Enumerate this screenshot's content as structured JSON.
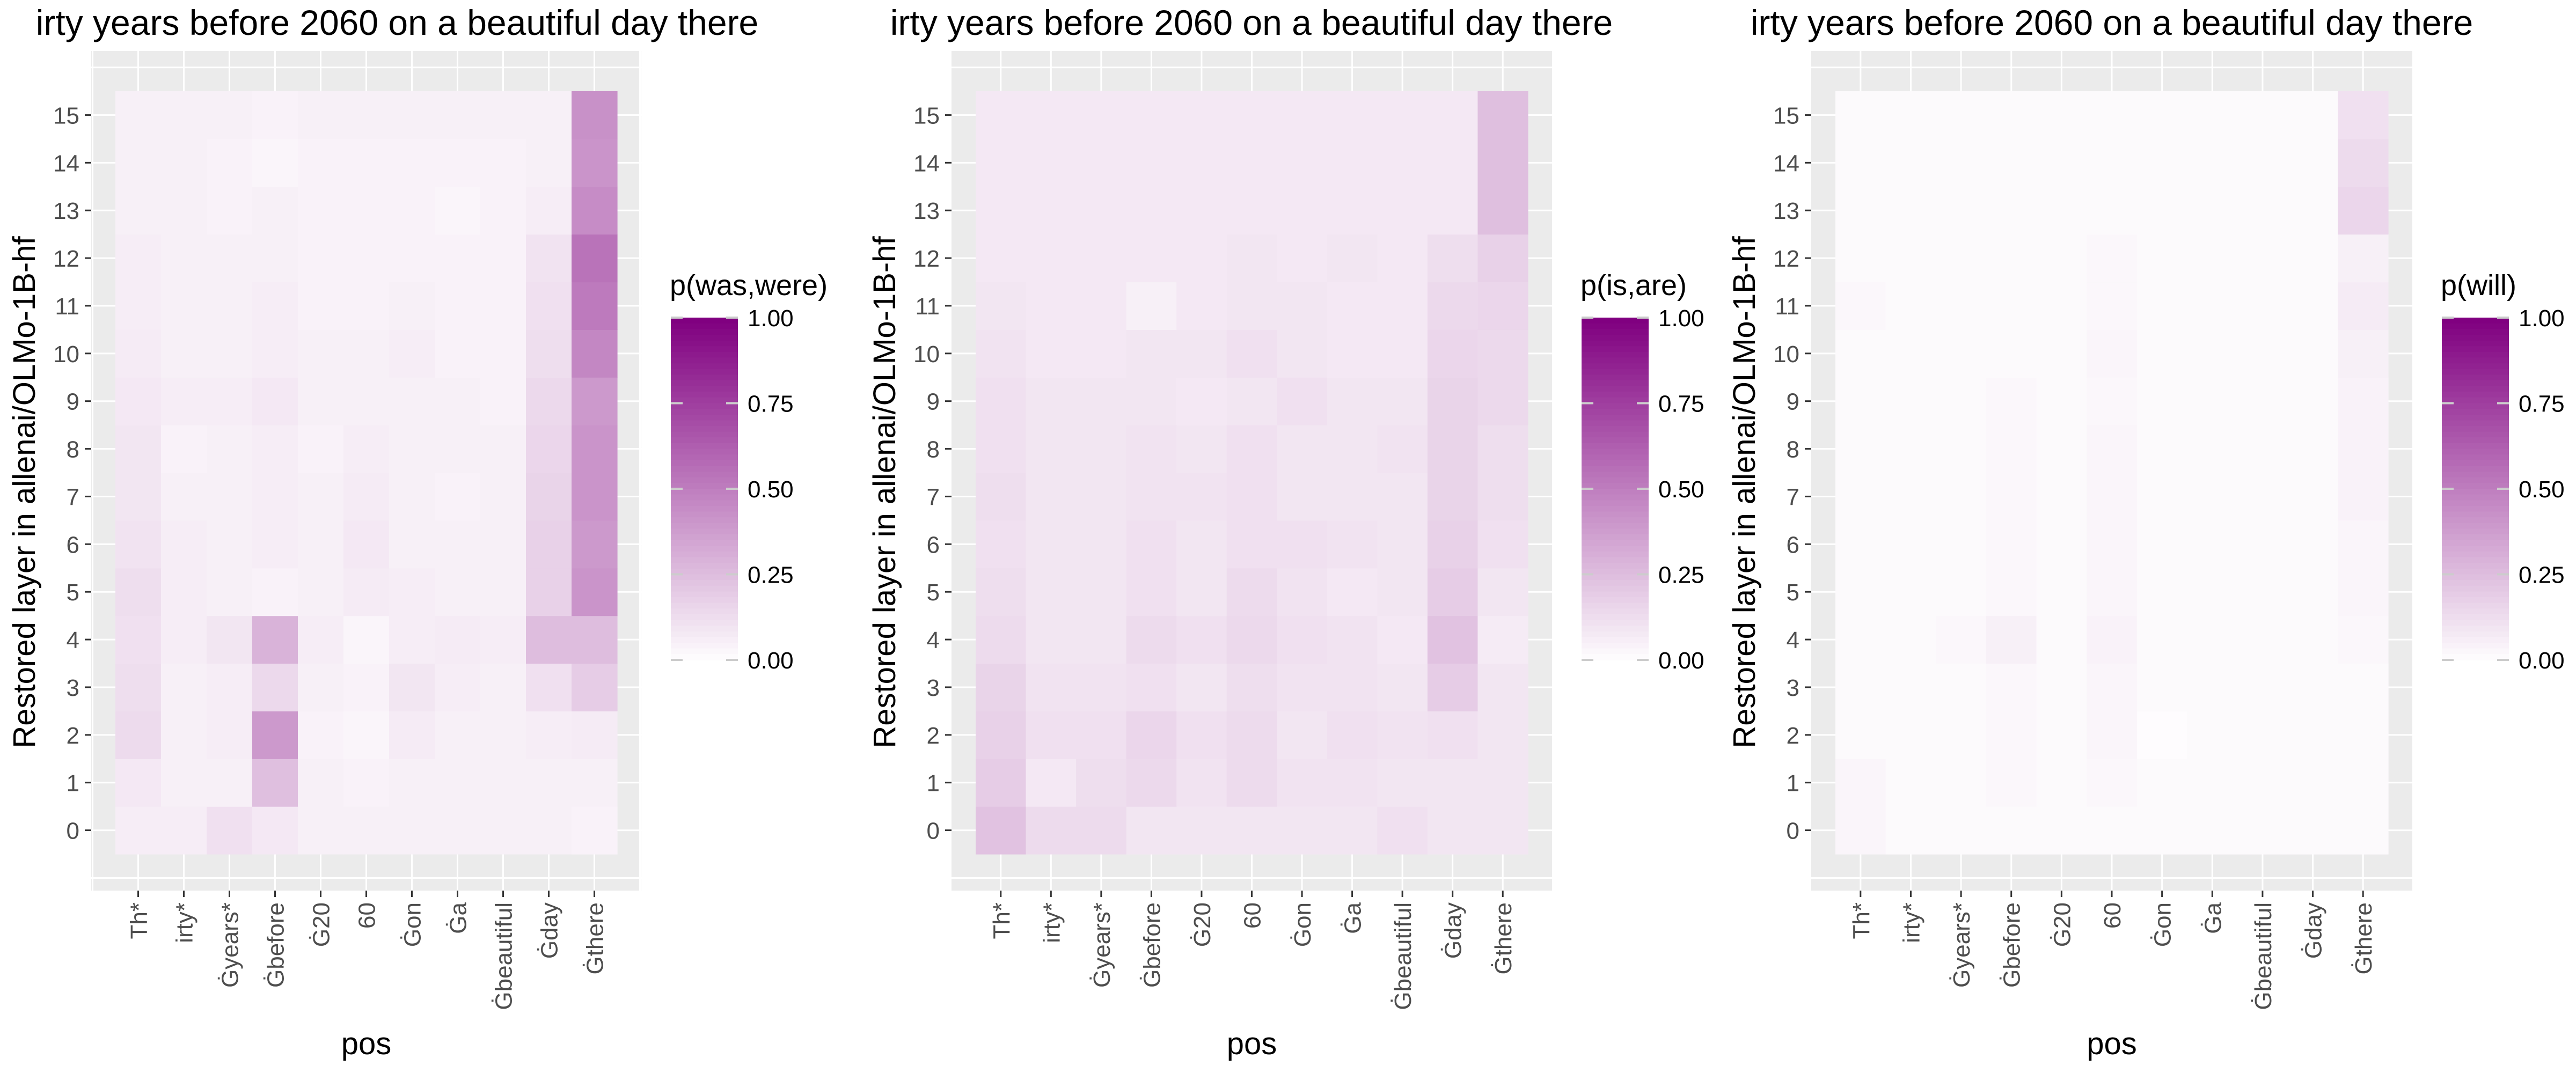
{
  "colors": {
    "low": "#ffffff",
    "high": "#800080",
    "panel_bg": "#ebebeb",
    "grid": "#ffffff",
    "tick_text": "#4d4d4d"
  },
  "chart_data": [
    {
      "type": "heatmap",
      "title": "irty years before 2060 on a beautiful day there",
      "xlabel": "pos",
      "ylabel": "Restored layer in allenai/OLMo-1B-hf",
      "legend": {
        "title": "p(was,were)",
        "ticks": [
          "1.00",
          "0.75",
          "0.50",
          "0.25",
          "0.00"
        ],
        "placement": "right"
      },
      "x": [
        "Th*",
        "irty*",
        "Ġyears*",
        "Ġbefore",
        "Ġ20",
        "60",
        "Ġon",
        "Ġa",
        "Ġbeautiful",
        "Ġday",
        "Ġthere"
      ],
      "y": [
        "0",
        "1",
        "2",
        "3",
        "4",
        "5",
        "6",
        "7",
        "8",
        "9",
        "10",
        "11",
        "12",
        "13",
        "14",
        "15"
      ],
      "zlim": [
        0,
        1
      ],
      "values": [
        [
          0.07,
          0.07,
          0.12,
          0.09,
          0.06,
          0.06,
          0.06,
          0.06,
          0.06,
          0.06,
          0.05
        ],
        [
          0.09,
          0.06,
          0.06,
          0.25,
          0.06,
          0.05,
          0.06,
          0.06,
          0.06,
          0.06,
          0.06
        ],
        [
          0.14,
          0.06,
          0.07,
          0.4,
          0.05,
          0.04,
          0.08,
          0.06,
          0.06,
          0.07,
          0.08
        ],
        [
          0.13,
          0.06,
          0.07,
          0.15,
          0.06,
          0.05,
          0.1,
          0.07,
          0.06,
          0.12,
          0.2
        ],
        [
          0.12,
          0.07,
          0.1,
          0.3,
          0.07,
          0.04,
          0.07,
          0.08,
          0.07,
          0.26,
          0.26
        ],
        [
          0.13,
          0.07,
          0.06,
          0.05,
          0.06,
          0.08,
          0.07,
          0.06,
          0.06,
          0.18,
          0.42
        ],
        [
          0.11,
          0.07,
          0.06,
          0.07,
          0.06,
          0.09,
          0.06,
          0.06,
          0.06,
          0.18,
          0.4
        ],
        [
          0.1,
          0.06,
          0.06,
          0.07,
          0.06,
          0.08,
          0.06,
          0.05,
          0.06,
          0.17,
          0.42
        ],
        [
          0.1,
          0.05,
          0.06,
          0.07,
          0.05,
          0.07,
          0.06,
          0.06,
          0.06,
          0.16,
          0.42
        ],
        [
          0.09,
          0.07,
          0.07,
          0.09,
          0.06,
          0.06,
          0.06,
          0.06,
          0.05,
          0.15,
          0.4
        ],
        [
          0.08,
          0.06,
          0.06,
          0.07,
          0.06,
          0.06,
          0.07,
          0.05,
          0.05,
          0.13,
          0.47
        ],
        [
          0.07,
          0.06,
          0.06,
          0.07,
          0.05,
          0.05,
          0.06,
          0.05,
          0.05,
          0.12,
          0.52
        ],
        [
          0.07,
          0.06,
          0.06,
          0.06,
          0.05,
          0.05,
          0.05,
          0.05,
          0.05,
          0.11,
          0.55
        ],
        [
          0.06,
          0.06,
          0.05,
          0.06,
          0.05,
          0.05,
          0.05,
          0.04,
          0.05,
          0.07,
          0.45
        ],
        [
          0.06,
          0.06,
          0.05,
          0.04,
          0.05,
          0.05,
          0.05,
          0.05,
          0.05,
          0.06,
          0.42
        ],
        [
          0.06,
          0.06,
          0.06,
          0.05,
          0.06,
          0.06,
          0.06,
          0.06,
          0.06,
          0.06,
          0.43
        ]
      ]
    },
    {
      "type": "heatmap",
      "title": "irty years before 2060 on a beautiful day there",
      "xlabel": "pos",
      "ylabel": "Restored layer in allenai/OLMo-1B-hf",
      "legend": {
        "title": "p(is,are)",
        "ticks": [
          "1.00",
          "0.75",
          "0.50",
          "0.25",
          "0.00"
        ],
        "placement": "right"
      },
      "x": [
        "Th*",
        "irty*",
        "Ġyears*",
        "Ġbefore",
        "Ġ20",
        "60",
        "Ġon",
        "Ġa",
        "Ġbeautiful",
        "Ġday",
        "Ġthere"
      ],
      "y": [
        "0",
        "1",
        "2",
        "3",
        "4",
        "5",
        "6",
        "7",
        "8",
        "9",
        "10",
        "11",
        "12",
        "13",
        "14",
        "15"
      ],
      "zlim": [
        0,
        1
      ],
      "values": [
        [
          0.24,
          0.14,
          0.14,
          0.1,
          0.1,
          0.1,
          0.1,
          0.1,
          0.12,
          0.1,
          0.1
        ],
        [
          0.2,
          0.09,
          0.13,
          0.15,
          0.11,
          0.14,
          0.11,
          0.11,
          0.1,
          0.1,
          0.1
        ],
        [
          0.18,
          0.12,
          0.12,
          0.16,
          0.12,
          0.14,
          0.1,
          0.12,
          0.11,
          0.12,
          0.1
        ],
        [
          0.17,
          0.11,
          0.11,
          0.12,
          0.1,
          0.13,
          0.11,
          0.11,
          0.1,
          0.2,
          0.1
        ],
        [
          0.14,
          0.1,
          0.1,
          0.14,
          0.12,
          0.15,
          0.12,
          0.11,
          0.09,
          0.24,
          0.08
        ],
        [
          0.13,
          0.1,
          0.1,
          0.12,
          0.1,
          0.14,
          0.11,
          0.09,
          0.1,
          0.2,
          0.1
        ],
        [
          0.12,
          0.1,
          0.1,
          0.12,
          0.1,
          0.12,
          0.12,
          0.11,
          0.1,
          0.18,
          0.12
        ],
        [
          0.13,
          0.1,
          0.1,
          0.11,
          0.11,
          0.12,
          0.1,
          0.1,
          0.1,
          0.17,
          0.13
        ],
        [
          0.12,
          0.1,
          0.1,
          0.11,
          0.1,
          0.12,
          0.1,
          0.1,
          0.11,
          0.17,
          0.13
        ],
        [
          0.12,
          0.1,
          0.1,
          0.1,
          0.09,
          0.1,
          0.12,
          0.1,
          0.1,
          0.17,
          0.15
        ],
        [
          0.11,
          0.09,
          0.09,
          0.1,
          0.1,
          0.12,
          0.1,
          0.09,
          0.09,
          0.16,
          0.15
        ],
        [
          0.1,
          0.09,
          0.09,
          0.06,
          0.09,
          0.1,
          0.1,
          0.09,
          0.09,
          0.15,
          0.16
        ],
        [
          0.09,
          0.09,
          0.09,
          0.09,
          0.09,
          0.1,
          0.09,
          0.1,
          0.09,
          0.13,
          0.18
        ],
        [
          0.09,
          0.09,
          0.09,
          0.09,
          0.09,
          0.09,
          0.09,
          0.09,
          0.09,
          0.09,
          0.25
        ],
        [
          0.09,
          0.09,
          0.09,
          0.09,
          0.09,
          0.09,
          0.09,
          0.09,
          0.09,
          0.09,
          0.25
        ],
        [
          0.09,
          0.09,
          0.09,
          0.09,
          0.09,
          0.09,
          0.09,
          0.09,
          0.09,
          0.09,
          0.25
        ]
      ]
    },
    {
      "type": "heatmap",
      "title": "irty years before 2060 on a beautiful day there",
      "xlabel": "pos",
      "ylabel": "Restored layer in allenai/OLMo-1B-hf",
      "legend": {
        "title": "p(will)",
        "ticks": [
          "1.00",
          "0.75",
          "0.50",
          "0.25",
          "0.00"
        ],
        "placement": "right"
      },
      "x": [
        "Th*",
        "irty*",
        "Ġyears*",
        "Ġbefore",
        "Ġ20",
        "60",
        "Ġon",
        "Ġa",
        "Ġbeautiful",
        "Ġday",
        "Ġthere"
      ],
      "y": [
        "0",
        "1",
        "2",
        "3",
        "4",
        "5",
        "6",
        "7",
        "8",
        "9",
        "10",
        "11",
        "12",
        "13",
        "14",
        "15"
      ],
      "zlim": [
        0,
        1
      ],
      "values": [
        [
          0.04,
          0.02,
          0.02,
          0.02,
          0.02,
          0.02,
          0.02,
          0.02,
          0.02,
          0.02,
          0.02
        ],
        [
          0.04,
          0.02,
          0.02,
          0.03,
          0.02,
          0.03,
          0.02,
          0.02,
          0.02,
          0.02,
          0.02
        ],
        [
          0.02,
          0.02,
          0.02,
          0.03,
          0.02,
          0.04,
          0.01,
          0.02,
          0.02,
          0.02,
          0.02
        ],
        [
          0.02,
          0.02,
          0.02,
          0.03,
          0.02,
          0.04,
          0.02,
          0.02,
          0.02,
          0.02,
          0.02
        ],
        [
          0.02,
          0.02,
          0.03,
          0.06,
          0.02,
          0.05,
          0.02,
          0.02,
          0.02,
          0.02,
          0.03
        ],
        [
          0.02,
          0.02,
          0.02,
          0.03,
          0.02,
          0.04,
          0.02,
          0.02,
          0.02,
          0.02,
          0.04
        ],
        [
          0.02,
          0.02,
          0.02,
          0.03,
          0.02,
          0.04,
          0.02,
          0.02,
          0.02,
          0.02,
          0.04
        ],
        [
          0.02,
          0.02,
          0.02,
          0.03,
          0.02,
          0.04,
          0.02,
          0.02,
          0.02,
          0.02,
          0.05
        ],
        [
          0.02,
          0.02,
          0.02,
          0.03,
          0.02,
          0.04,
          0.02,
          0.02,
          0.02,
          0.02,
          0.05
        ],
        [
          0.02,
          0.02,
          0.02,
          0.03,
          0.02,
          0.03,
          0.02,
          0.02,
          0.02,
          0.02,
          0.05
        ],
        [
          0.02,
          0.02,
          0.02,
          0.02,
          0.02,
          0.04,
          0.02,
          0.02,
          0.02,
          0.02,
          0.06
        ],
        [
          0.03,
          0.02,
          0.02,
          0.02,
          0.02,
          0.03,
          0.02,
          0.02,
          0.02,
          0.02,
          0.08
        ],
        [
          0.02,
          0.02,
          0.02,
          0.02,
          0.02,
          0.03,
          0.02,
          0.02,
          0.02,
          0.02,
          0.06
        ],
        [
          0.02,
          0.02,
          0.02,
          0.02,
          0.02,
          0.02,
          0.02,
          0.02,
          0.02,
          0.02,
          0.16
        ],
        [
          0.02,
          0.02,
          0.02,
          0.02,
          0.02,
          0.02,
          0.02,
          0.02,
          0.02,
          0.02,
          0.14
        ],
        [
          0.02,
          0.02,
          0.02,
          0.02,
          0.02,
          0.02,
          0.02,
          0.02,
          0.02,
          0.02,
          0.12
        ]
      ]
    }
  ]
}
